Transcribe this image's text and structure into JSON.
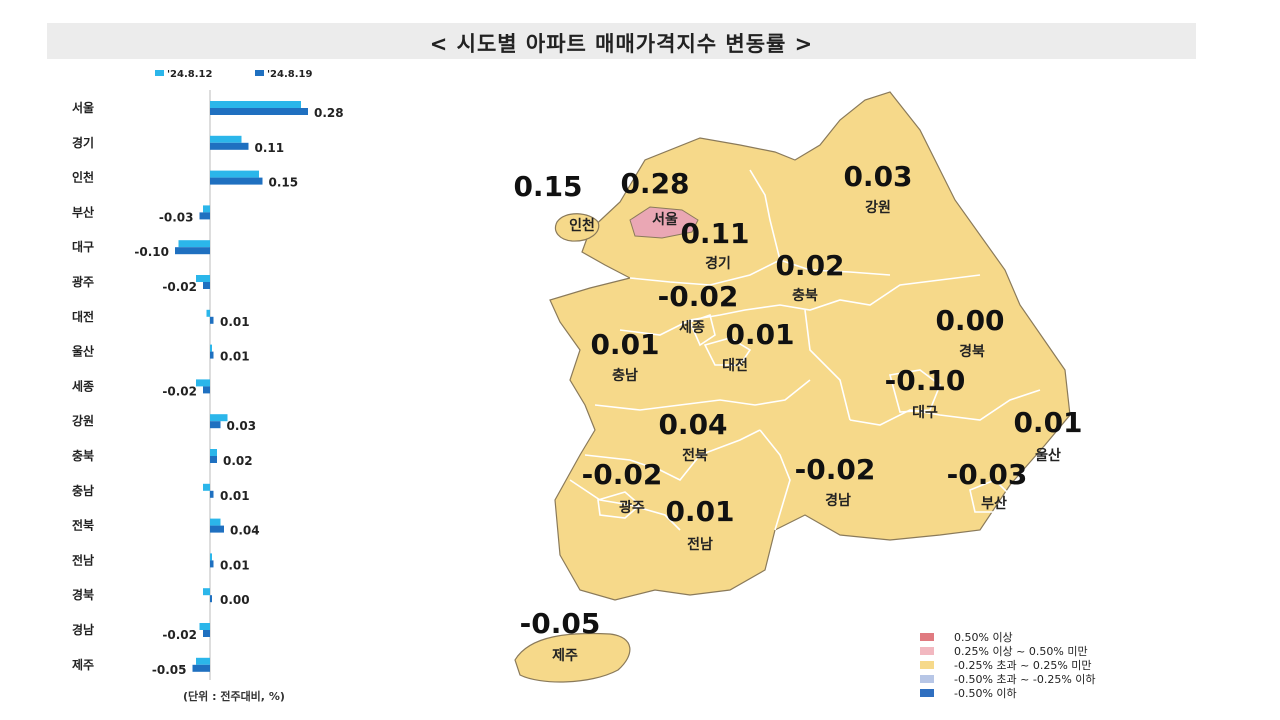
{
  "title": "< 시도별 아파트 매매가격지수 변동률 >",
  "unit_note": "(단위 : 전주대비, %)",
  "colors": {
    "series_prev": "#2bb6ea",
    "series_curr": "#1f70c0",
    "map_neutral": "#f6d98a",
    "map_pink": "#eaa7b4",
    "map_border": "#8a7a5a"
  },
  "chart_data": {
    "type": "bar",
    "orientation": "horizontal",
    "categories": [
      "서울",
      "경기",
      "인천",
      "부산",
      "대구",
      "광주",
      "대전",
      "울산",
      "세종",
      "강원",
      "충북",
      "충남",
      "전북",
      "전남",
      "경북",
      "경남",
      "제주"
    ],
    "series": [
      {
        "name": "'24.8.12",
        "values": [
          0.26,
          0.09,
          0.14,
          -0.02,
          -0.09,
          -0.04,
          -0.01,
          0.0,
          -0.04,
          0.05,
          0.02,
          -0.02,
          0.03,
          0.0,
          -0.02,
          -0.03,
          -0.04
        ]
      },
      {
        "name": "'24.8.19",
        "values": [
          0.28,
          0.11,
          0.15,
          -0.03,
          -0.1,
          -0.02,
          0.01,
          0.01,
          -0.02,
          0.03,
          0.02,
          0.01,
          0.04,
          0.01,
          0.0,
          -0.02,
          -0.05
        ]
      }
    ],
    "data_labels": [
      "0.28",
      "0.11",
      "0.15",
      "-0.03",
      "-0.10",
      "-0.02",
      "0.01",
      "0.01",
      "-0.02",
      "0.03",
      "0.02",
      "0.01",
      "0.04",
      "0.01",
      "0.00",
      "-0.02",
      "-0.05"
    ],
    "xlim": [
      -0.1,
      0.3
    ],
    "legend_position": "top"
  },
  "map": {
    "regions": [
      {
        "name": "인천",
        "value": "0.15"
      },
      {
        "name": "서울",
        "value": "0.28"
      },
      {
        "name": "경기",
        "value": "0.11"
      },
      {
        "name": "강원",
        "value": "0.03"
      },
      {
        "name": "충북",
        "value": "0.02"
      },
      {
        "name": "세종",
        "value": "-0.02"
      },
      {
        "name": "충남",
        "value": "0.01"
      },
      {
        "name": "대전",
        "value": "0.01"
      },
      {
        "name": "경북",
        "value": "0.00"
      },
      {
        "name": "대구",
        "value": "-0.10"
      },
      {
        "name": "울산",
        "value": "0.01"
      },
      {
        "name": "전북",
        "value": "0.04"
      },
      {
        "name": "광주",
        "value": "-0.02"
      },
      {
        "name": "경남",
        "value": "-0.02"
      },
      {
        "name": "부산",
        "value": "-0.03"
      },
      {
        "name": "전남",
        "value": "0.01"
      },
      {
        "name": "제주",
        "value": "-0.05"
      }
    ]
  },
  "legend": [
    {
      "label": "0.50% 이상",
      "color": "#e07a80"
    },
    {
      "label": "0.25% 이상 ~ 0.50% 미만",
      "color": "#f2b8c0"
    },
    {
      "label": "-0.25% 초과 ~ 0.25% 미만",
      "color": "#f6d98a"
    },
    {
      "label": "-0.50% 초과 ~ -0.25% 이하",
      "color": "#b7c6e6"
    },
    {
      "label": "-0.50% 이하",
      "color": "#2f6fc0"
    }
  ]
}
